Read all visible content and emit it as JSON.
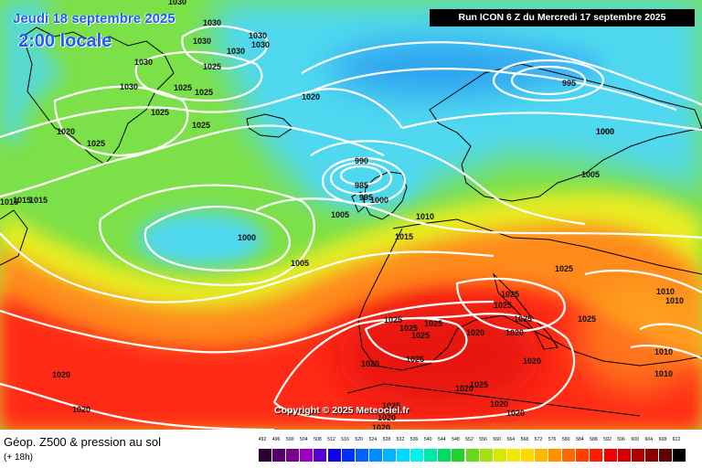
{
  "header": {
    "date": "Jeudi 18 septembre 2025",
    "local_time": "2:00 locale",
    "run": "Run ICON 6 Z du Mercredi 17 septembre 2025"
  },
  "copyright": "Copyright © 2025 Meteociel.fr",
  "footer": {
    "title": "Géop. Z500 & pression au sol",
    "lead": "(+ 18h)"
  },
  "legend": {
    "values": [
      "492",
      "496",
      "500",
      "504",
      "508",
      "512",
      "516",
      "520",
      "524",
      "528",
      "532",
      "536",
      "540",
      "544",
      "548",
      "552",
      "556",
      "560",
      "564",
      "568",
      "572",
      "576",
      "580",
      "584",
      "588",
      "592",
      "596",
      "600",
      "604",
      "608",
      "612"
    ],
    "colors": [
      "#2a0030",
      "#52006a",
      "#7a008e",
      "#9a00c4",
      "#5500d8",
      "#1200e6",
      "#0030f4",
      "#0062ff",
      "#008cff",
      "#00b4ff",
      "#00d8ff",
      "#00f2e8",
      "#00e8a8",
      "#00dc60",
      "#22d22c",
      "#6ad81a",
      "#a6e00e",
      "#d8e800",
      "#f4e800",
      "#ffd800",
      "#ffb800",
      "#ff9000",
      "#ff6800",
      "#ff4000",
      "#ff1c00",
      "#f40000",
      "#d40000",
      "#b00000",
      "#880000",
      "#600000",
      "#000000"
    ]
  },
  "pressure_labels": [
    "1030",
    "1030",
    "1030",
    "1030",
    "1030",
    "1030",
    "1030",
    "1030",
    "1025",
    "1025",
    "1025",
    "1025",
    "1025",
    "1025",
    "1020",
    "1020",
    "1015",
    "1015",
    "1015",
    "1000",
    "990",
    "985",
    "995",
    "1000",
    "1005",
    "1010",
    "1015",
    "1000",
    "1005",
    "995",
    "1000",
    "1005",
    "1025",
    "1025",
    "1025",
    "1025",
    "1025",
    "1025",
    "1025",
    "1020",
    "1020",
    "1020",
    "1025",
    "1025",
    "1020",
    "1020",
    "1020",
    "1020",
    "1010",
    "1010",
    "1010",
    "1010",
    "1025",
    "1025",
    "1020",
    "1025",
    "1020",
    "1020",
    "1020"
  ],
  "map_colors": {
    "ocean_cyan": "#4fd8f0",
    "green": "#7ce048",
    "yellow": "#e8ec20",
    "orange": "#ff8a1c",
    "red": "#ff2a14",
    "dark_red": "#e01010",
    "isobar": "#ffffff",
    "coast": "#000000"
  }
}
